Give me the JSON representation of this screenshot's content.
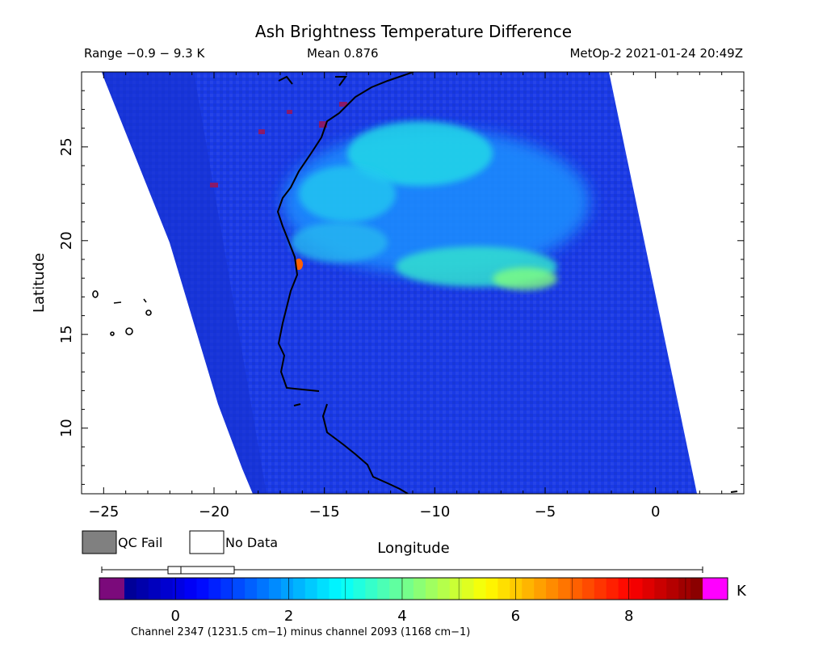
{
  "header": {
    "title": "Ash Brightness Temperature Difference",
    "range_text": "Range −0.9 − 9.3 K",
    "mean_text": "Mean 0.876",
    "satellite_time": "MetOp-2 2021-01-24 20:49Z"
  },
  "axes": {
    "xlabel": "Longitude",
    "ylabel": "Latitude",
    "xlim": [
      -26,
      4
    ],
    "ylim": [
      6.5,
      29
    ],
    "x_ticks": [
      {
        "value": -25,
        "label": "−25"
      },
      {
        "value": -20,
        "label": "−20"
      },
      {
        "value": -15,
        "label": "−15"
      },
      {
        "value": -10,
        "label": "−10"
      },
      {
        "value": -5,
        "label": "−5"
      },
      {
        "value": 0,
        "label": "0"
      }
    ],
    "y_ticks": [
      {
        "value": 10,
        "label": "10"
      },
      {
        "value": 15,
        "label": "15"
      },
      {
        "value": 20,
        "label": "20"
      },
      {
        "value": 25,
        "label": "25"
      }
    ]
  },
  "legend": {
    "qc_fail": "QC Fail",
    "no_data": "No Data",
    "qc_fail_color": "#808080",
    "no_data_color": "#ffffff"
  },
  "colorbar": {
    "unit": "K",
    "range": [
      -0.9,
      9.3
    ],
    "ticks": [
      {
        "value": 0,
        "label": "0"
      },
      {
        "value": 2,
        "label": "2"
      },
      {
        "value": 4,
        "label": "4"
      },
      {
        "value": 6,
        "label": "6"
      },
      {
        "value": 8,
        "label": "8"
      }
    ],
    "caption": "Channel 2347 (1231.5 cm−1) minus channel 2093 (1168 cm−1)",
    "underflow_color": "#7b0a7b",
    "overflow_color": "#ff00ff",
    "stops": [
      "#00008f",
      "#0000ff",
      "#0080ff",
      "#00ffff",
      "#80ff80",
      "#ffff00",
      "#ff8000",
      "#ff0000",
      "#800000"
    ]
  },
  "map": {
    "swath_color": "#1a3ae6",
    "coast_color": "#000000"
  }
}
